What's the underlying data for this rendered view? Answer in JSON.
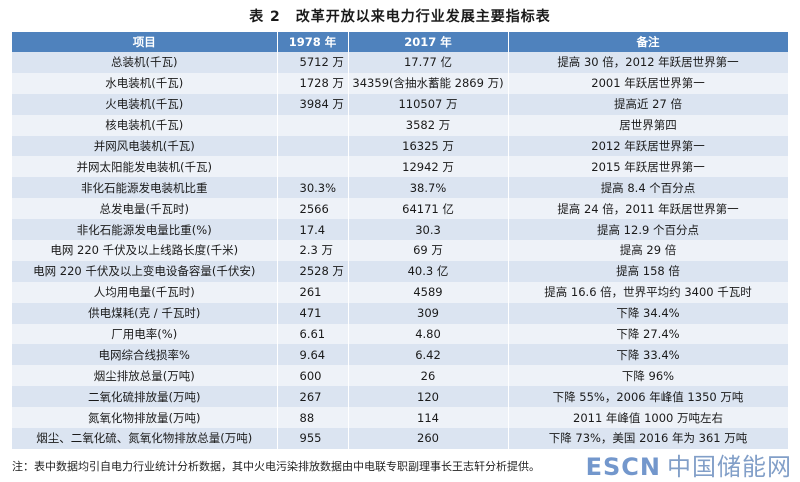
{
  "title": "表 2　改革开放以来电力行业发展主要指标表",
  "headers": [
    "项目",
    "1978 年",
    "2017 年",
    "备注"
  ],
  "rows": [
    [
      "总装机(千瓦)",
      "5712 万",
      "17.77 亿",
      "提高 30 倍，2012 年跃居世界第一"
    ],
    [
      "水电装机(千瓦)",
      "1728 万",
      "34359(含抽水蓄能 2869 万)",
      "2001 年跃居世界第一"
    ],
    [
      "火电装机(千瓦)",
      "3984 万",
      "110507 万",
      "提高近 27 倍"
    ],
    [
      "核电装机(千瓦)",
      "",
      "3582 万",
      "居世界第四"
    ],
    [
      "并网风电装机(千瓦)",
      "",
      "16325 万",
      "2012 年跃居世界第一"
    ],
    [
      "并网太阳能发电装机(千瓦)",
      "",
      "12942 万",
      "2015 年跃居世界第一"
    ],
    [
      "非化石能源发电装机比重",
      "30.3%",
      "38.7%",
      "提高 8.4 个百分点"
    ],
    [
      "总发电量(千瓦时)",
      "2566",
      "64171 亿",
      "提高 24 倍，2011 年跃居世界第一"
    ],
    [
      "非化石能源发电量比重(%)",
      "17.4",
      "30.3",
      "提高 12.9 个百分点"
    ],
    [
      "电网 220 千伏及以上线路长度(千米)",
      "2.3 万",
      "69 万",
      "提高 29 倍"
    ],
    [
      "电网 220 千伏及以上变电设备容量(千伏安)",
      "2528 万",
      "40.3 亿",
      "提高 158 倍"
    ],
    [
      "人均用电量(千瓦时)",
      "261",
      "4589",
      "提高 16.6 倍，世界平均约 3400 千瓦时"
    ],
    [
      "供电煤耗(克 / 千瓦时)",
      "471",
      "309",
      "下降 34.4%"
    ],
    [
      "厂用电率(%)",
      "6.61",
      "4.80",
      "下降 27.4%"
    ],
    [
      "电网综合线损率%",
      "9.64",
      "6.42",
      "下降 33.4%"
    ],
    [
      "烟尘排放总量(万吨)",
      "600",
      "26",
      "下降 96%"
    ],
    [
      "二氧化硫排放量(万吨)",
      "267",
      "120",
      "下降 55%，2006 年峰值 1350 万吨"
    ],
    [
      "氮氧化物排放量(万吨)",
      "88",
      "114",
      "2011 年峰值 1000 万吨左右"
    ],
    [
      "烟尘、二氧化硫、氮氧化物排放总量(万吨)",
      "955",
      "260",
      "下降 73%，美国 2016 年为 361 万吨"
    ]
  ],
  "note": "注：表中数据均引自电力行业统计分析数据，其中火电污染排放数据由中电联专职副理事长王志轩分析提供。",
  "watermark": {
    "brand": "ESCN",
    "cn": "中国储能网"
  },
  "colors": {
    "header": "#4f82bd",
    "row_a": "#dbe4f1",
    "row_b": "#eef2f8"
  }
}
